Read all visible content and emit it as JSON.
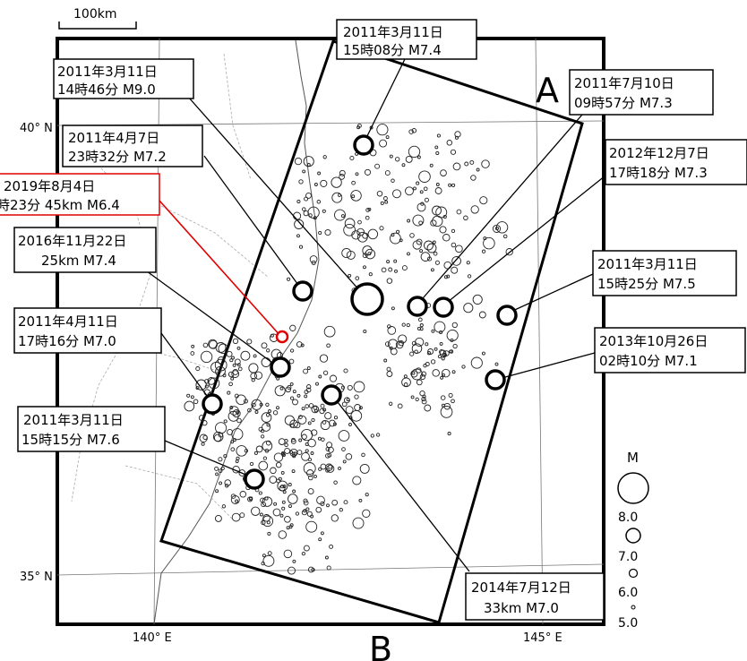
{
  "scale_bar": {
    "label": "100km"
  },
  "profile": {
    "end_a": "A",
    "end_b": "B"
  },
  "axes": {
    "lat_labels": [
      "40° N",
      "35° N"
    ],
    "lon_labels": [
      "140° E",
      "145° E"
    ]
  },
  "annotations": [
    {
      "id": "eq-2011-03-11-1508",
      "line1": "2011年3月11日",
      "line2": "15時08分 M7.4",
      "highlight": false
    },
    {
      "id": "eq-2011-03-11-1446",
      "line1": "2011年3月11日",
      "line2": "14時46分 M9.0",
      "highlight": false
    },
    {
      "id": "eq-2011-07-10",
      "line1": "2011年7月10日",
      "line2": "09時57分 M7.3",
      "highlight": false
    },
    {
      "id": "eq-2011-04-07",
      "line1": "2011年4月7日",
      "line2": "23時32分 M7.2",
      "highlight": false
    },
    {
      "id": "eq-2012-12-07",
      "line1": "2012年12月7日",
      "line2": "17時18分 M7.3",
      "highlight": false
    },
    {
      "id": "eq-2019-08-04",
      "line1": "2019年8月4日",
      "line2": "時23分 45km M6.4",
      "highlight": true
    },
    {
      "id": "eq-2016-11-22",
      "line1": "2016年11月22日",
      "line2": "25km M7.4",
      "highlight": false
    },
    {
      "id": "eq-2011-03-11-1525",
      "line1": "2011年3月11日",
      "line2": "15時25分 M7.5",
      "highlight": false
    },
    {
      "id": "eq-2011-04-11",
      "line1": "2011年4月11日",
      "line2": "17時16分 M7.0",
      "highlight": false
    },
    {
      "id": "eq-2013-10-26",
      "line1": "2013年10月26日",
      "line2": "02時10分 M7.1",
      "highlight": false
    },
    {
      "id": "eq-2011-03-11-1515",
      "line1": "2011年3月11日",
      "line2": "15時15分 M7.6",
      "highlight": false
    },
    {
      "id": "eq-2014-07-12",
      "line1": "2014年7月12日",
      "line2": "33km M7.0",
      "highlight": false
    }
  ],
  "legend": {
    "title": "M",
    "scale": [
      "8.0",
      "7.0",
      "6.0",
      "5.0"
    ]
  },
  "colors": {
    "highlight": "#e00000",
    "ink": "#000000"
  }
}
